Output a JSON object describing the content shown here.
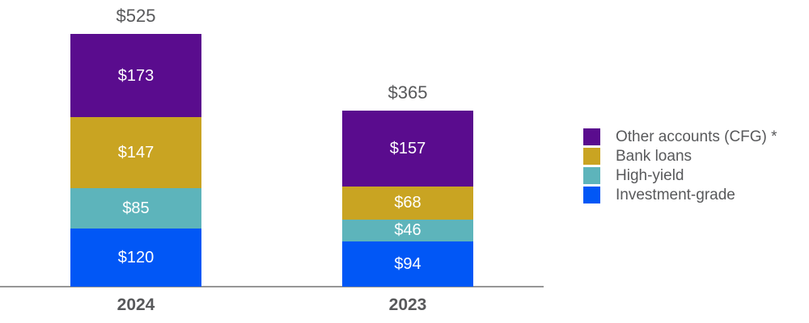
{
  "chart_data": {
    "type": "bar",
    "stacked": true,
    "title": "",
    "xlabel": "",
    "ylabel": "",
    "grid": false,
    "categories": [
      "2024",
      "2023"
    ],
    "series": [
      {
        "name": "Investment-grade",
        "color": "#0157F6",
        "values": [
          120,
          94
        ],
        "value_labels": [
          "$120",
          "$94"
        ]
      },
      {
        "name": "High-yield",
        "color": "#5DB4BB",
        "values": [
          85,
          46
        ],
        "value_labels": [
          "$85",
          "$46"
        ]
      },
      {
        "name": "Bank loans",
        "color": "#C9A422",
        "values": [
          147,
          68
        ],
        "value_labels": [
          "$147",
          "$68"
        ]
      },
      {
        "name": "Other accounts (CFG) *",
        "color": "#5A0C8E",
        "values": [
          173,
          157
        ],
        "value_labels": [
          "$173",
          "$157"
        ]
      }
    ],
    "totals": [
      525,
      365
    ],
    "total_labels": [
      "$525",
      "$365"
    ],
    "legend": {
      "position": "right",
      "order_top_to_bottom": [
        "Other accounts (CFG) *",
        "Bank loans",
        "High-yield",
        "Investment-grade"
      ]
    },
    "styles": {
      "value_label_color": "#FFFFFF",
      "text_color": "#58595B",
      "axis_line_color": "#969696"
    }
  }
}
